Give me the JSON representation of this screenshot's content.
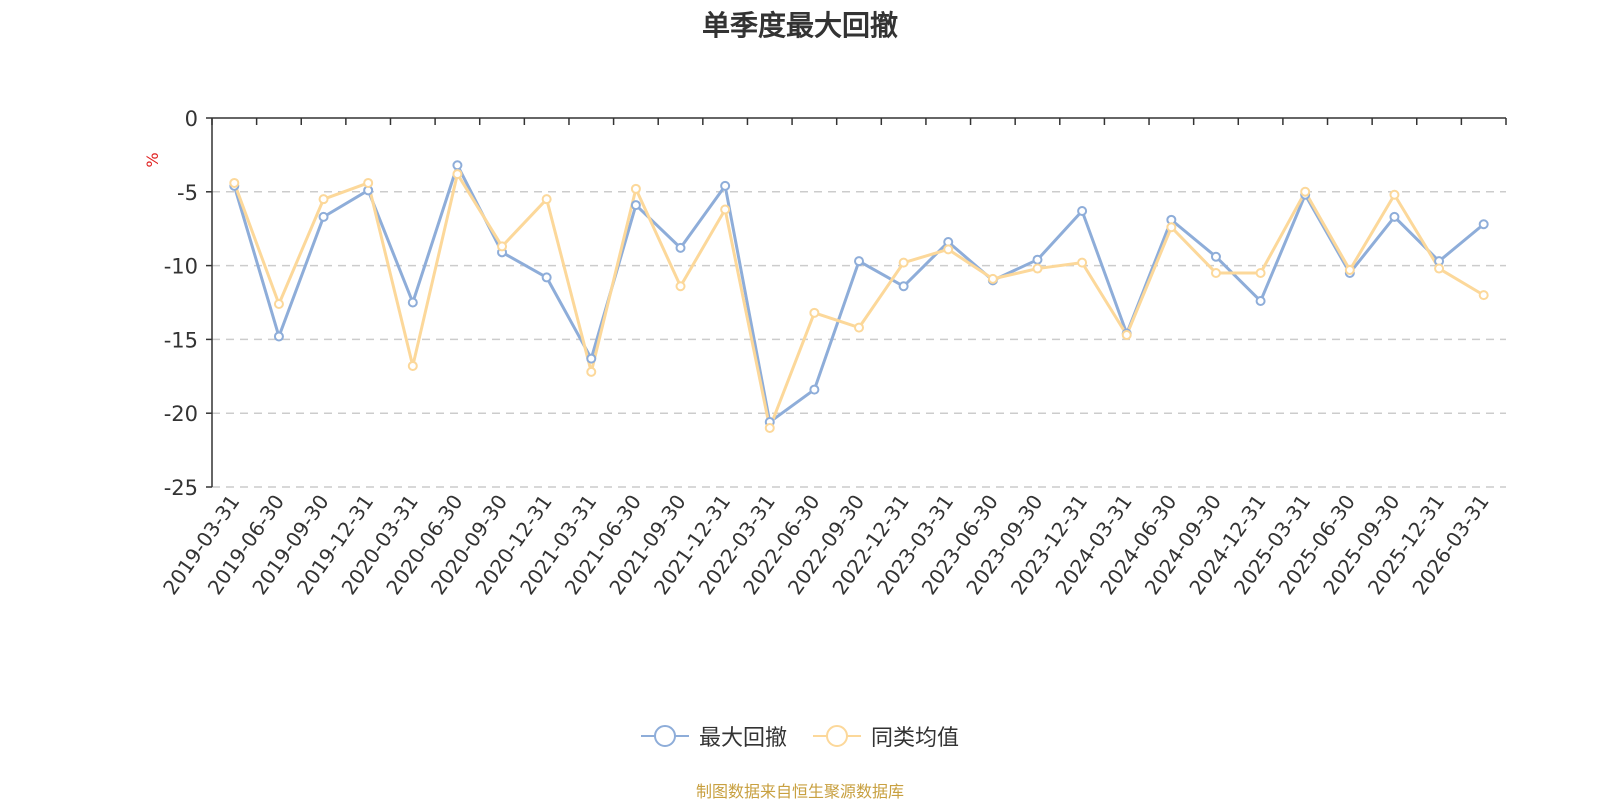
{
  "chart_data": {
    "type": "line",
    "title": "单季度最大回撤",
    "ylabel": "%",
    "ylim": [
      -25,
      0
    ],
    "yticks": [
      0,
      -5,
      -10,
      -15,
      -20,
      -25
    ],
    "grid": true,
    "legend_position": "bottom",
    "categories": [
      "2019-03-31",
      "2019-06-30",
      "2019-09-30",
      "2019-12-31",
      "2020-03-31",
      "2020-06-30",
      "2020-09-30",
      "2020-12-31",
      "2021-03-31",
      "2021-06-30",
      "2021-09-30",
      "2021-12-31",
      "2022-03-31",
      "2022-06-30",
      "2022-09-30",
      "2022-12-31",
      "2023-03-31",
      "2023-06-30",
      "2023-09-30",
      "2023-12-31",
      "2024-03-31",
      "2024-06-30",
      "2024-09-30",
      "2024-12-31",
      "2025-03-31",
      "2025-06-30",
      "2025-09-30",
      "2025-12-31",
      "2026-03-31"
    ],
    "series": [
      {
        "name": "最大回撤",
        "color": "#8eadd9",
        "values": [
          -4.6,
          -14.8,
          -6.7,
          -4.9,
          -12.5,
          -3.2,
          -9.1,
          -10.8,
          -16.3,
          -5.9,
          -8.8,
          -4.6,
          -20.6,
          -18.4,
          -9.7,
          -11.4,
          -8.4,
          -11.0,
          -9.6,
          -6.3,
          -14.6,
          -6.9,
          -9.4,
          -12.4,
          -5.2,
          -10.5,
          -6.7,
          -9.7,
          -7.2
        ]
      },
      {
        "name": "同类均值",
        "color": "#fcd89a",
        "values": [
          -4.4,
          -12.6,
          -5.5,
          -4.4,
          -16.8,
          -3.8,
          -8.7,
          -5.5,
          -17.2,
          -4.8,
          -11.4,
          -6.2,
          -21.0,
          -13.2,
          -14.2,
          -9.8,
          -8.9,
          -10.9,
          -10.2,
          -9.8,
          -14.7,
          -7.4,
          -10.5,
          -10.5,
          -5.0,
          -10.3,
          -5.2,
          -10.2,
          -12.0
        ]
      }
    ]
  },
  "footer": {
    "text": "制图数据来自恒生聚源数据库",
    "color": "#c8a040"
  }
}
